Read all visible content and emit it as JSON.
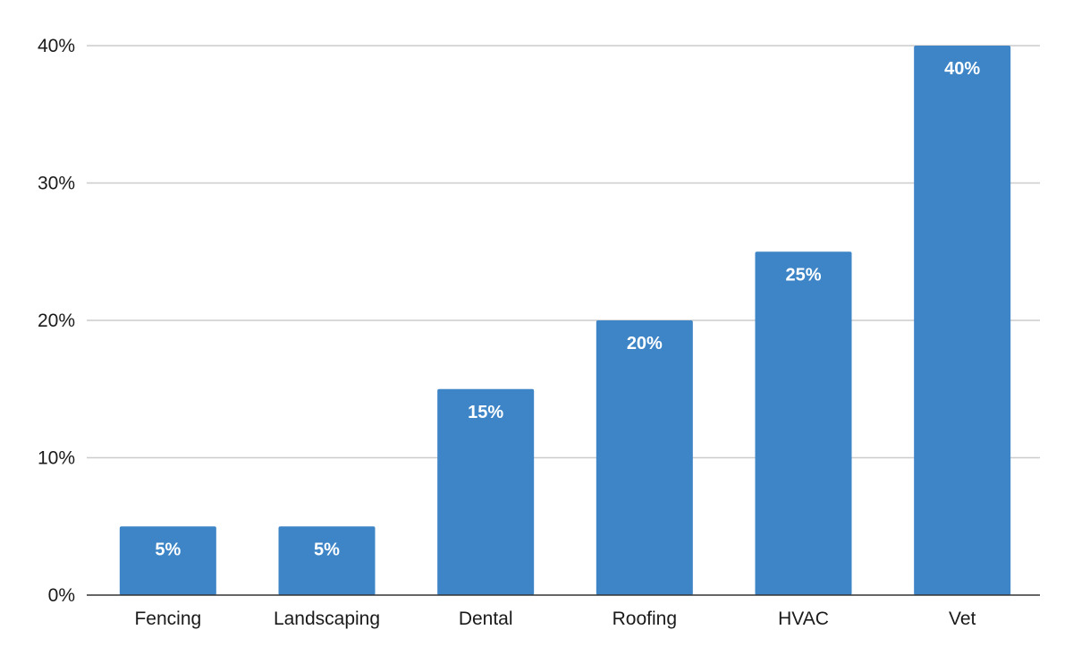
{
  "chart_data": {
    "type": "bar",
    "title": "",
    "xlabel": "",
    "ylabel": "",
    "categories": [
      "Fencing",
      "Landscaping",
      "Dental",
      "Roofing",
      "HVAC",
      "Vet"
    ],
    "values": [
      5,
      5,
      15,
      20,
      25,
      40
    ],
    "data_labels": [
      "5%",
      "5%",
      "15%",
      "20%",
      "25%",
      "40%"
    ],
    "ylim": [
      0,
      40
    ],
    "y_ticks": [
      0,
      10,
      20,
      30,
      40
    ],
    "y_tick_labels": [
      "0%",
      "10%",
      "20%",
      "30%",
      "40%"
    ],
    "grid": true,
    "legend": "none",
    "colors": {
      "bar": "#3d85c6",
      "grid": "#cccccc",
      "axis": "#333333",
      "text": "#1a1a1a",
      "label": "#ffffff"
    }
  }
}
